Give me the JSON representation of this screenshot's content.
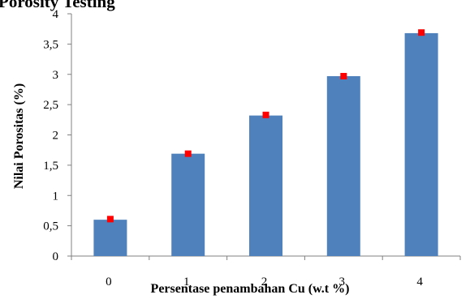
{
  "chart_data": {
    "type": "bar",
    "title": "Porosity Testing",
    "xlabel": "Persentase penambahan Cu (w.t %)",
    "ylabel": "Nilai Porositas (%)",
    "categories": [
      "0",
      "1",
      "2",
      "3",
      "4"
    ],
    "series": [
      {
        "type": "bar",
        "values": [
          0.6,
          1.69,
          2.32,
          2.97,
          3.68
        ]
      },
      {
        "type": "marker",
        "values": [
          0.61,
          1.69,
          2.33,
          2.97,
          3.69
        ]
      }
    ],
    "ylim": [
      0,
      4
    ],
    "yticks": [
      "0",
      "0,5",
      "1",
      "1,5",
      "2",
      "2,5",
      "3",
      "3,5",
      "4"
    ],
    "grid": false,
    "colors": {
      "bar": "#4f81bd",
      "marker": "#ff0000",
      "axis": "#808080"
    }
  }
}
